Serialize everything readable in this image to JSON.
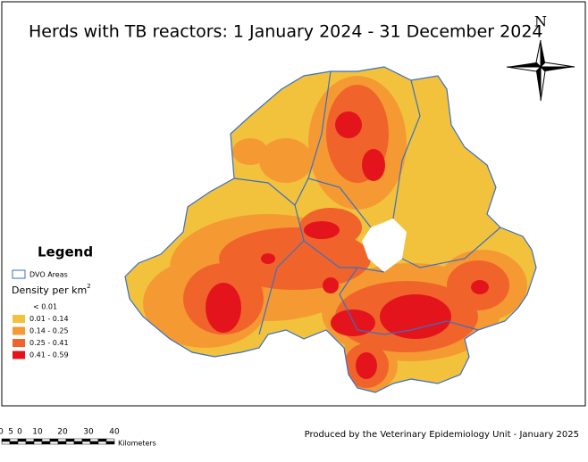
{
  "title": "Herds with TB reactors: 1 January 2024 - 31 December 2024",
  "north": "N",
  "legend": {
    "title": "Legend",
    "boundary": "DVO Areas",
    "density_title": "Density per km",
    "density_unit_power": "2",
    "classes": [
      {
        "label": "< 0.01",
        "color": "#ffffff"
      },
      {
        "label": "0.01 - 0.14",
        "color": "#f3c23c"
      },
      {
        "label": "0.14 - 0.25",
        "color": "#f59a32"
      },
      {
        "label": "0.25 - 0.41",
        "color": "#f0642c"
      },
      {
        "label": "0.41 - 0.59",
        "color": "#e4141c"
      }
    ]
  },
  "scale_bar": {
    "labels": [
      "0",
      "5",
      "0",
      "10",
      "20",
      "30",
      "40"
    ],
    "unit": "Kilometers"
  },
  "credit": "Produced by the Veterinary Epidemiology Unit - January 2025"
}
